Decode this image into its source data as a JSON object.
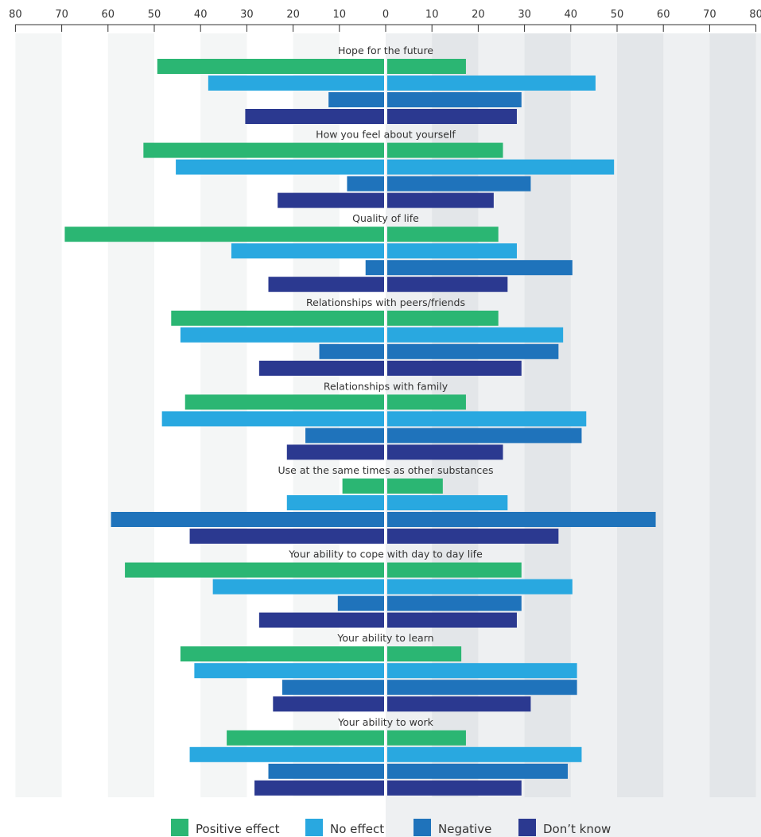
{
  "chart_data": {
    "type": "bar",
    "orientation": "horizontal-butterfly",
    "title": "",
    "xlabel": "",
    "ylabel": "",
    "xlim_left": [
      80,
      0
    ],
    "xlim_right": [
      0,
      80
    ],
    "tick_labels": [
      "80",
      "70",
      "60",
      "50",
      "40",
      "30",
      "20",
      "10",
      "0",
      "10",
      "20",
      "30",
      "40",
      "50",
      "60",
      "70",
      "80"
    ],
    "grid": "alternating vertical bands",
    "legend_position": "bottom",
    "colors": {
      "positive": "#2bb673",
      "no_effect": "#29a8e0",
      "negative": "#1f73bb",
      "dont_know": "#2b3990"
    },
    "series": [
      {
        "name": "Positive effect",
        "key": "positive"
      },
      {
        "name": "No effect",
        "key": "no_effect"
      },
      {
        "name": "Negative",
        "key": "negative"
      },
      {
        "name": "Don’t know",
        "key": "dont_know"
      }
    ],
    "categories": [
      "Hope for the future",
      "How you feel about yourself",
      "Quality of life",
      "Relationships with peers/friends",
      "Relationships with family",
      "Use at the same times as other substances",
      "Your ability to cope with day to day life",
      "Your ability to learn",
      "Your ability to work"
    ],
    "left_values": {
      "positive": [
        49,
        52,
        69,
        46,
        43,
        9,
        56,
        44,
        34
      ],
      "no_effect": [
        38,
        45,
        33,
        44,
        48,
        21,
        37,
        41,
        42
      ],
      "negative": [
        12,
        8,
        4,
        14,
        17,
        59,
        10,
        22,
        25
      ],
      "dont_know": [
        30,
        23,
        25,
        27,
        21,
        42,
        27,
        24,
        28
      ]
    },
    "right_values": {
      "positive": [
        17,
        25,
        24,
        24,
        17,
        12,
        29,
        16,
        17
      ],
      "no_effect": [
        45,
        49,
        28,
        38,
        43,
        26,
        40,
        41,
        42
      ],
      "negative": [
        29,
        31,
        40,
        37,
        42,
        58,
        29,
        41,
        39
      ],
      "dont_know": [
        28,
        23,
        26,
        29,
        25,
        37,
        28,
        31,
        29
      ]
    }
  }
}
